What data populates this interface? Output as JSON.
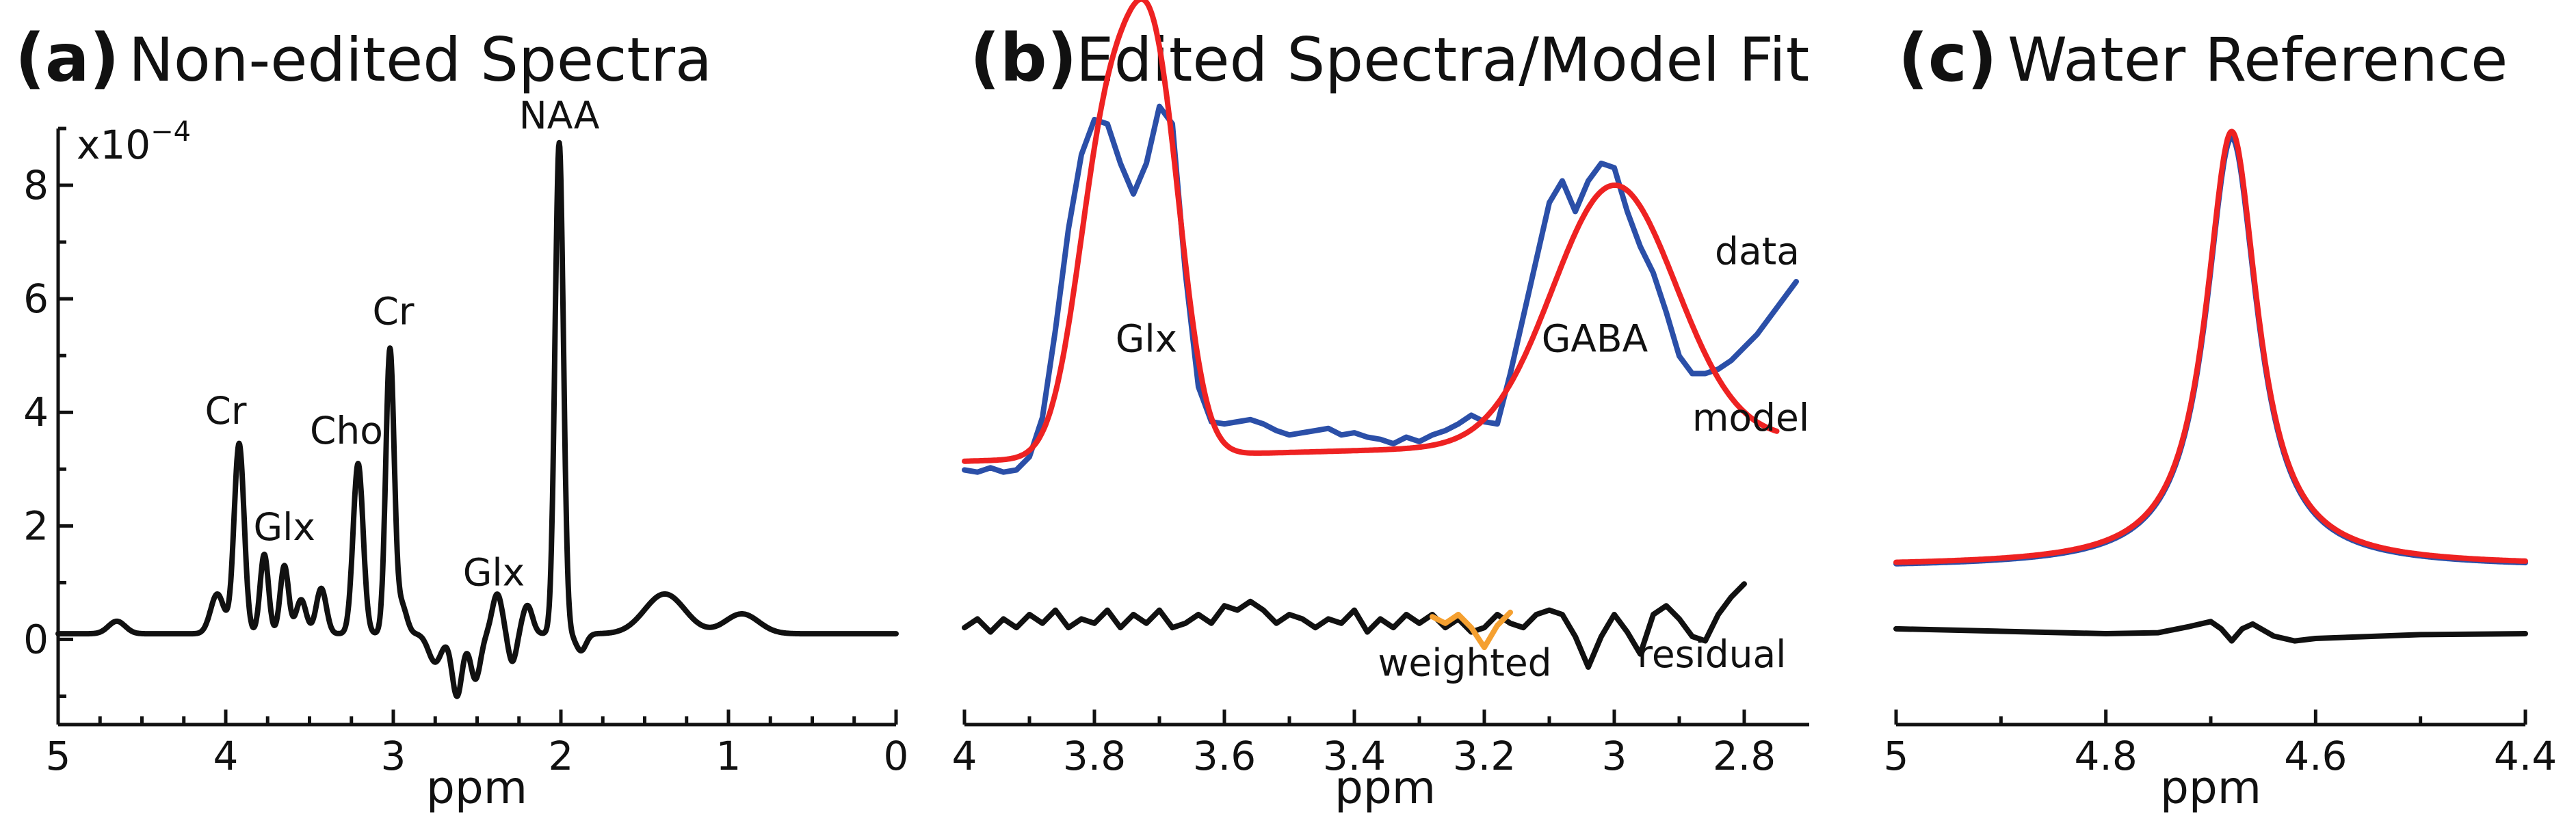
{
  "colors": {
    "data": "#2b4fa8",
    "model": "#ee2222",
    "residual": "#111111",
    "weighted": "#f5a030",
    "spectrum": "#111111"
  },
  "chart_data": [
    {
      "type": "line",
      "letter": "(a)",
      "title": "Non-edited Spectra",
      "xlabel": "ppm",
      "ylabel": "",
      "y_scale_label": "x10",
      "y_scale_exponent": "−4",
      "xlim": [
        5,
        0
      ],
      "ylim": [
        -1.5,
        9
      ],
      "x_ticks": [
        5,
        4,
        3,
        2,
        1,
        0
      ],
      "x_tick_labels": [
        "5",
        "4",
        "3",
        "2",
        "1",
        "0"
      ],
      "y_ticks": [
        0,
        2,
        4,
        6,
        8
      ],
      "y_tick_labels": [
        "0",
        "2",
        "4",
        "6",
        "8"
      ],
      "series": [
        {
          "name": "spectrum",
          "baseline": 0.1,
          "components": [
            {
              "center": 4.65,
              "amp": 0.22,
              "width": 0.05
            },
            {
              "center": 4.05,
              "amp": 0.7,
              "width": 0.04
            },
            {
              "center": 3.92,
              "amp": 3.35,
              "width": 0.03
            },
            {
              "center": 3.77,
              "amp": 1.4,
              "width": 0.025
            },
            {
              "center": 3.65,
              "amp": 1.2,
              "width": 0.025
            },
            {
              "center": 3.55,
              "amp": 0.6,
              "width": 0.03
            },
            {
              "center": 3.43,
              "amp": 0.8,
              "width": 0.03
            },
            {
              "center": 3.21,
              "amp": 3.0,
              "width": 0.03
            },
            {
              "center": 3.02,
              "amp": 5.0,
              "width": 0.025
            },
            {
              "center": 2.95,
              "amp": 0.5,
              "width": 0.03
            },
            {
              "center": 2.75,
              "amp": -0.5,
              "width": 0.04
            },
            {
              "center": 2.62,
              "amp": -1.1,
              "width": 0.03
            },
            {
              "center": 2.51,
              "amp": -0.8,
              "width": 0.03
            },
            {
              "center": 2.38,
              "amp": 0.7,
              "width": 0.03
            },
            {
              "center": 2.29,
              "amp": -0.5,
              "width": 0.025
            },
            {
              "center": 2.2,
              "amp": 0.5,
              "width": 0.03
            },
            {
              "center": 2.01,
              "amp": 8.65,
              "width": 0.025
            },
            {
              "center": 1.88,
              "amp": -0.3,
              "width": 0.03
            },
            {
              "center": 1.38,
              "amp": 0.7,
              "width": 0.12
            },
            {
              "center": 0.92,
              "amp": 0.35,
              "width": 0.1
            }
          ]
        }
      ],
      "annotations": [
        {
          "text": "Cr",
          "x": 4.0,
          "y": 3.8
        },
        {
          "text": "Glx",
          "x": 3.65,
          "y": 1.75
        },
        {
          "text": "Cho",
          "x": 3.28,
          "y": 3.45
        },
        {
          "text": "Cr",
          "x": 3.0,
          "y": 5.55
        },
        {
          "text": "Glx",
          "x": 2.4,
          "y": 0.95
        },
        {
          "text": "NAA",
          "x": 2.01,
          "y": 9.0
        }
      ]
    },
    {
      "type": "line",
      "letter": "(b)",
      "title": "Edited Spectra/Model Fit",
      "xlabel": "ppm",
      "ylabel": "",
      "xlim": [
        4.0,
        2.7
      ],
      "x_ticks": [
        4.0,
        3.8,
        3.6,
        3.4,
        3.2,
        3.0,
        2.8
      ],
      "x_tick_labels": [
        "4",
        "3.8",
        "3.6",
        "3.4",
        "3.2",
        "3",
        "2.8"
      ],
      "series": [
        {
          "name": "data",
          "x": [
            4.0,
            3.98,
            3.96,
            3.94,
            3.92,
            3.9,
            3.88,
            3.86,
            3.84,
            3.82,
            3.8,
            3.78,
            3.76,
            3.74,
            3.72,
            3.7,
            3.68,
            3.66,
            3.64,
            3.62,
            3.6,
            3.58,
            3.56,
            3.54,
            3.52,
            3.5,
            3.48,
            3.46,
            3.44,
            3.42,
            3.4,
            3.38,
            3.36,
            3.34,
            3.32,
            3.3,
            3.28,
            3.26,
            3.24,
            3.22,
            3.2,
            3.18,
            3.16,
            3.14,
            3.12,
            3.1,
            3.08,
            3.06,
            3.04,
            3.02,
            3.0,
            2.98,
            2.96,
            2.94,
            2.92,
            2.9,
            2.88,
            2.86,
            2.84,
            2.82,
            2.8,
            2.78,
            2.76,
            2.74,
            2.72
          ],
          "y": [
            1.3,
            1.25,
            1.35,
            1.25,
            1.3,
            1.6,
            2.5,
            4.5,
            6.8,
            8.5,
            9.3,
            9.2,
            8.3,
            7.6,
            8.3,
            9.6,
            9.2,
            5.8,
            3.2,
            2.4,
            2.35,
            2.4,
            2.45,
            2.35,
            2.2,
            2.1,
            2.15,
            2.2,
            2.25,
            2.1,
            2.15,
            2.05,
            2.0,
            1.9,
            2.05,
            1.95,
            2.1,
            2.2,
            2.35,
            2.55,
            2.4,
            2.35,
            3.5,
            4.8,
            6.1,
            7.4,
            7.9,
            7.2,
            7.9,
            8.3,
            8.2,
            7.2,
            6.4,
            5.8,
            4.9,
            3.9,
            3.5,
            3.5,
            3.6,
            3.8,
            4.1,
            4.4,
            4.8,
            5.2,
            5.6
          ]
        },
        {
          "name": "model",
          "baseline": 1.5,
          "baseline_slope": 0.5,
          "components": [
            {
              "center": 3.78,
              "amp": 7.3,
              "width": 0.045
            },
            {
              "center": 3.705,
              "amp": 7.9,
              "width": 0.04
            },
            {
              "center": 3.0,
              "amp": 5.9,
              "width": 0.095
            }
          ]
        },
        {
          "name": "residual",
          "x": [
            4.0,
            3.98,
            3.96,
            3.94,
            3.92,
            3.9,
            3.88,
            3.86,
            3.84,
            3.82,
            3.8,
            3.78,
            3.76,
            3.74,
            3.72,
            3.7,
            3.68,
            3.66,
            3.64,
            3.62,
            3.6,
            3.58,
            3.56,
            3.54,
            3.52,
            3.5,
            3.48,
            3.46,
            3.44,
            3.42,
            3.4,
            3.38,
            3.36,
            3.34,
            3.32,
            3.3,
            3.28,
            3.26,
            3.24,
            3.22,
            3.2,
            3.18,
            3.16,
            3.14,
            3.12,
            3.1,
            3.08,
            3.06,
            3.04,
            3.02,
            3.0,
            2.98,
            2.96,
            2.94,
            2.92,
            2.9,
            2.88,
            2.86,
            2.84,
            2.82,
            2.8
          ],
          "y": [
            -2.3,
            -2.1,
            -2.4,
            -2.1,
            -2.3,
            -2.0,
            -2.2,
            -1.9,
            -2.3,
            -2.1,
            -2.2,
            -1.9,
            -2.3,
            -2.0,
            -2.2,
            -1.9,
            -2.3,
            -2.2,
            -2.0,
            -2.2,
            -1.8,
            -1.9,
            -1.7,
            -1.9,
            -2.2,
            -2.0,
            -2.1,
            -2.3,
            -2.1,
            -2.2,
            -1.9,
            -2.4,
            -2.1,
            -2.3,
            -2.0,
            -2.2,
            -2.0,
            -2.3,
            -2.1,
            -2.4,
            -2.3,
            -2.0,
            -2.2,
            -2.3,
            -2.0,
            -1.9,
            -2.0,
            -2.5,
            -3.2,
            -2.5,
            -2.0,
            -2.4,
            -2.9,
            -2.0,
            -1.8,
            -2.1,
            -2.5,
            -2.6,
            -2.0,
            -1.6,
            -1.3
          ]
        },
        {
          "name": "weighted",
          "x": [
            3.28,
            3.26,
            3.24,
            3.22,
            3.2,
            3.18,
            3.16
          ],
          "y": [
            -2.05,
            -2.2,
            -2.0,
            -2.3,
            -2.75,
            -2.25,
            -1.95
          ]
        }
      ],
      "annotations": [
        {
          "text": "Glx",
          "x": 3.72,
          "y": 4.0
        },
        {
          "text": "GABA",
          "x": 3.03,
          "y": 4.0
        },
        {
          "text": "data",
          "x": 2.78,
          "y": 6.0,
          "color_key": "data"
        },
        {
          "text": "model",
          "x": 2.79,
          "y": 2.2,
          "color_key": "model"
        },
        {
          "text": "weighted",
          "x": 3.23,
          "y": -3.4,
          "color_key": "weighted"
        },
        {
          "text": "residual",
          "x": 2.85,
          "y": -3.2
        }
      ]
    },
    {
      "type": "line",
      "letter": "(c)",
      "title": "Water Reference",
      "xlabel": "ppm",
      "ylabel": "",
      "xlim": [
        5.0,
        4.4
      ],
      "x_ticks": [
        5.0,
        4.8,
        4.6,
        4.4
      ],
      "x_tick_labels": [
        "5",
        "4.8",
        "4.6",
        "4.4"
      ],
      "series": [
        {
          "name": "data",
          "type": "lorentzian",
          "center": 4.68,
          "amp": 8.9,
          "hwhm": 0.03,
          "offset": -0.03
        },
        {
          "name": "model",
          "type": "lorentzian",
          "center": 4.68,
          "amp": 9.0,
          "hwhm": 0.03,
          "offset": 0.0
        },
        {
          "name": "residual",
          "x": [
            5.0,
            4.9,
            4.8,
            4.75,
            4.72,
            4.7,
            4.69,
            4.68,
            4.67,
            4.66,
            4.64,
            4.62,
            4.6,
            4.5,
            4.4
          ],
          "y": [
            -1.3,
            -1.35,
            -1.4,
            -1.38,
            -1.25,
            -1.15,
            -1.3,
            -1.55,
            -1.3,
            -1.2,
            -1.45,
            -1.55,
            -1.5,
            -1.42,
            -1.4
          ]
        }
      ]
    }
  ]
}
